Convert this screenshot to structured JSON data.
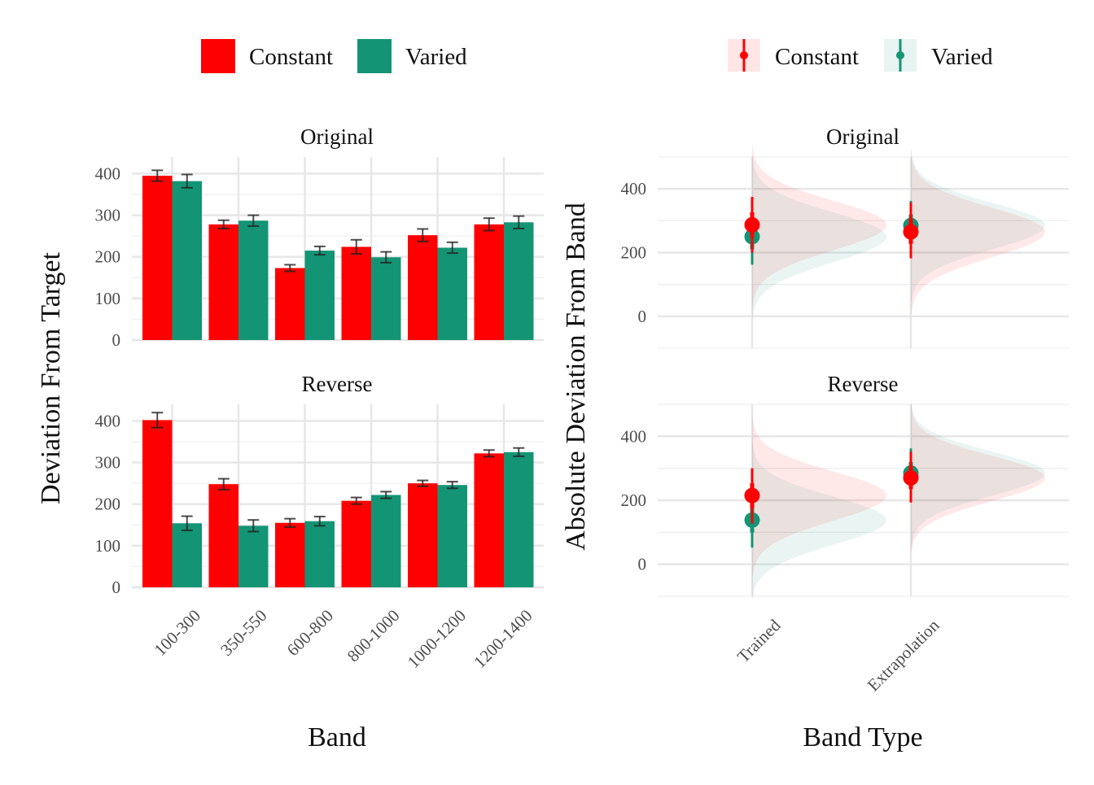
{
  "legend_left": {
    "items": [
      {
        "label": "Constant",
        "color": "#FF0000"
      },
      {
        "label": "Varied",
        "color": "#139475"
      }
    ]
  },
  "legend_right": {
    "items": [
      {
        "label": "Constant",
        "color": "#FF0000"
      },
      {
        "label": "Varied",
        "color": "#139475"
      }
    ]
  },
  "chart_data": [
    {
      "type": "bar",
      "xlabel": "Band",
      "ylabel": "Deviation From Target",
      "ylim": [
        0,
        440
      ],
      "yticks": [
        0,
        100,
        200,
        300,
        400
      ],
      "grid": true,
      "legend_position": "top",
      "categories": [
        "100-300",
        "350-550",
        "600-800",
        "800-1000",
        "1000-1200",
        "1200-1400"
      ],
      "panels": [
        {
          "label": "Original",
          "series": [
            {
              "name": "Constant",
              "color": "#FF0000",
              "values": [
                395,
                278,
                173,
                224,
                252,
                278
              ],
              "errors": [
                13,
                10,
                8,
                17,
                15,
                15
              ]
            },
            {
              "name": "Varied",
              "color": "#139475",
              "values": [
                382,
                287,
                215,
                199,
                222,
                283
              ],
              "errors": [
                16,
                13,
                10,
                13,
                13,
                15
              ]
            }
          ]
        },
        {
          "label": "Reverse",
          "series": [
            {
              "name": "Constant",
              "color": "#FF0000",
              "values": [
                402,
                248,
                155,
                208,
                250,
                322
              ],
              "errors": [
                18,
                13,
                10,
                8,
                7,
                8
              ]
            },
            {
              "name": "Varied",
              "color": "#139475",
              "values": [
                154,
                148,
                159,
                222,
                246,
                325
              ],
              "errors": [
                17,
                14,
                11,
                8,
                8,
                10
              ]
            }
          ]
        }
      ]
    },
    {
      "type": "scatter",
      "xlabel": "Band Type",
      "ylabel": "Absolute Deviation From Band",
      "ylim": [
        -100,
        500
      ],
      "yticks": [
        0,
        200,
        400
      ],
      "grid": true,
      "legend_position": "top",
      "categories": [
        "Trained",
        "Extrapolation"
      ],
      "panels": [
        {
          "label": "Original",
          "series": [
            {
              "name": "Constant",
              "color": "#FF0000",
              "values": [
                287,
                265
              ],
              "intervals": [
                [
                  200,
                  375
                ],
                [
                  182,
                  357
                ]
              ]
            },
            {
              "name": "Varied",
              "color": "#139475",
              "values": [
                250,
                285
              ],
              "intervals": [
                [
                  162,
                  338
                ],
                [
                  197,
                  362
                ]
              ]
            }
          ]
        },
        {
          "label": "Reverse",
          "series": [
            {
              "name": "Constant",
              "color": "#FF0000",
              "values": [
                215,
                270
              ],
              "intervals": [
                [
                  127,
                  300
                ],
                [
                  193,
                  352
                ]
              ]
            },
            {
              "name": "Varied",
              "color": "#139475",
              "values": [
                138,
                285
              ],
              "intervals": [
                [
                  52,
                  222
                ],
                [
                  207,
                  362
                ]
              ]
            }
          ]
        }
      ]
    }
  ]
}
